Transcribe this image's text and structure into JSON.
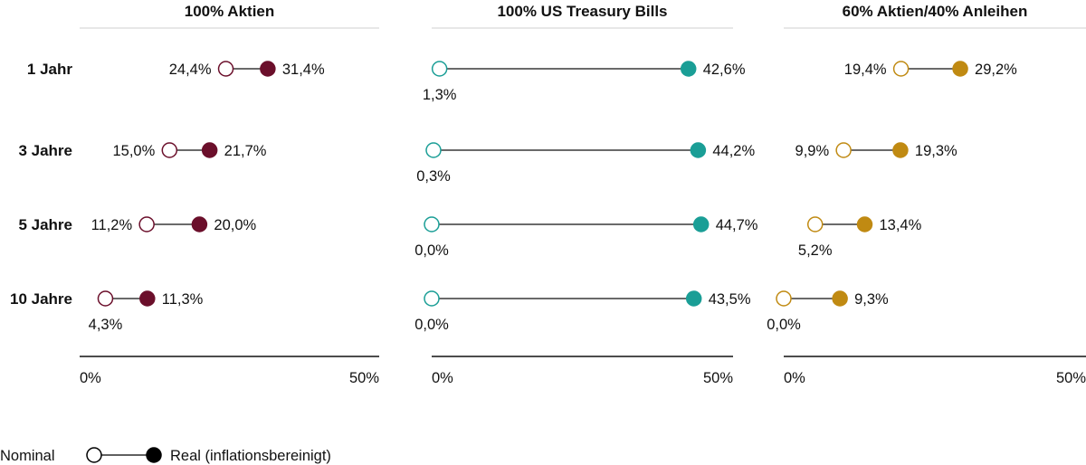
{
  "chart_data": {
    "type": "dumbbell",
    "rows": [
      "1 Jahr",
      "3 Jahre",
      "5 Jahre",
      "10 Jahre"
    ],
    "xlim": [
      0,
      50
    ],
    "tick_labels": [
      "0%",
      "50%"
    ],
    "panels": [
      {
        "title": "100% Aktien",
        "color": "#6b0f2b",
        "nominal": [
          24.4,
          15.0,
          11.2,
          4.3
        ],
        "real": [
          31.4,
          21.7,
          20.0,
          11.3
        ],
        "nominal_labels": [
          "24,4%",
          "15,0%",
          "11,2%",
          "4,3%"
        ],
        "real_labels": [
          "31,4%",
          "21,7%",
          "20,0%",
          "11,3%"
        ]
      },
      {
        "title": "100% US Treasury Bills",
        "color": "#1a9e96",
        "nominal": [
          1.3,
          0.3,
          0.0,
          0.0
        ],
        "real": [
          42.6,
          44.2,
          44.7,
          43.5
        ],
        "nominal_labels": [
          "1,3%",
          "0,3%",
          "0,0%",
          "0,0%"
        ],
        "real_labels": [
          "42,6%",
          "44,2%",
          "44,7%",
          "43,5%"
        ]
      },
      {
        "title": "60% Aktien/40% Anleihen",
        "color": "#c08a12",
        "nominal": [
          19.4,
          9.9,
          5.2,
          0.0
        ],
        "real": [
          29.2,
          19.3,
          13.4,
          9.3
        ],
        "nominal_labels": [
          "19,4%",
          "9,9%",
          "5,2%",
          "0,0%"
        ],
        "real_labels": [
          "29,2%",
          "19,3%",
          "13,4%",
          "9,3%"
        ]
      }
    ],
    "legend": {
      "nominal_label": "Nominal",
      "real_label": "Real (inflationsbereinigt)",
      "color": "#000000",
      "placement": "bottom-left"
    }
  }
}
